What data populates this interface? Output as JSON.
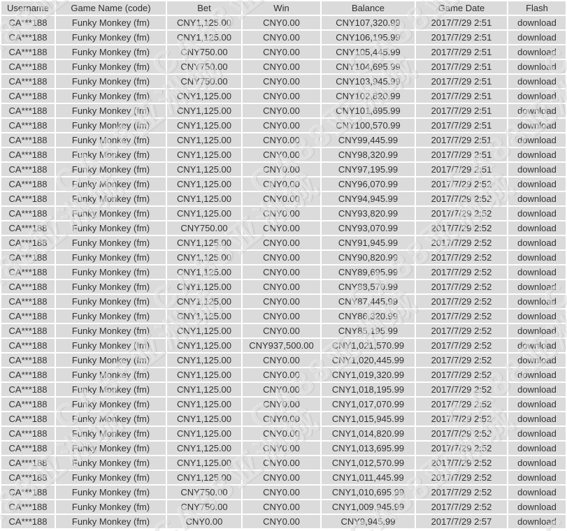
{
  "table": {
    "columns": [
      "Username",
      "Game Name (code)",
      "Bet",
      "Win",
      "Balance",
      "Game Date",
      "Flash"
    ],
    "rows": [
      [
        "CA***188",
        "Funky Monkey (fm)",
        "CNY1,125.00",
        "CNY0.00",
        "CNY107,320.99",
        "2017/7/29 2:51",
        "download"
      ],
      [
        "CA***188",
        "Funky Monkey (fm)",
        "CNY1,125.00",
        "CNY0.00",
        "CNY106,195.99",
        "2017/7/29 2:51",
        "download"
      ],
      [
        "CA***188",
        "Funky Monkey (fm)",
        "CNY750.00",
        "CNY0.00",
        "CNY105,445.99",
        "2017/7/29 2:51",
        "download"
      ],
      [
        "CA***188",
        "Funky Monkey (fm)",
        "CNY750.00",
        "CNY0.00",
        "CNY104,695.99",
        "2017/7/29 2:51",
        "download"
      ],
      [
        "CA***188",
        "Funky Monkey (fm)",
        "CNY750.00",
        "CNY0.00",
        "CNY103,945.99",
        "2017/7/29 2:51",
        "download"
      ],
      [
        "CA***188",
        "Funky Monkey (fm)",
        "CNY1,125.00",
        "CNY0.00",
        "CNY102,820.99",
        "2017/7/29 2:51",
        "download"
      ],
      [
        "CA***188",
        "Funky Monkey (fm)",
        "CNY1,125.00",
        "CNY0.00",
        "CNY101,695.99",
        "2017/7/29 2:51",
        "download"
      ],
      [
        "CA***188",
        "Funky Monkey (fm)",
        "CNY1,125.00",
        "CNY0.00",
        "CNY100,570.99",
        "2017/7/29 2:51",
        "download"
      ],
      [
        "CA***188",
        "Funky Monkey (fm)",
        "CNY1,125.00",
        "CNY0.00",
        "CNY99,445.99",
        "2017/7/29 2:51",
        "download"
      ],
      [
        "CA***188",
        "Funky Monkey (fm)",
        "CNY1,125.00",
        "CNY0.00",
        "CNY98,320.99",
        "2017/7/29 2:51",
        "download"
      ],
      [
        "CA***188",
        "Funky Monkey (fm)",
        "CNY1,125.00",
        "CNY0.00",
        "CNY97,195.99",
        "2017/7/29 2:51",
        "download"
      ],
      [
        "CA***188",
        "Funky Monkey (fm)",
        "CNY1,125.00",
        "CNY0.00",
        "CNY96,070.99",
        "2017/7/29 2:52",
        "download"
      ],
      [
        "CA***188",
        "Funky Monkey (fm)",
        "CNY1,125.00",
        "CNY0.00",
        "CNY94,945.99",
        "2017/7/29 2:52",
        "download"
      ],
      [
        "CA***188",
        "Funky Monkey (fm)",
        "CNY1,125.00",
        "CNY0.00",
        "CNY93,820.99",
        "2017/7/29 2:52",
        "download"
      ],
      [
        "CA***188",
        "Funky Monkey (fm)",
        "CNY750.00",
        "CNY0.00",
        "CNY93,070.99",
        "2017/7/29 2:52",
        "download"
      ],
      [
        "CA***188",
        "Funky Monkey (fm)",
        "CNY1,125.00",
        "CNY0.00",
        "CNY91,945.99",
        "2017/7/29 2:52",
        "download"
      ],
      [
        "CA***188",
        "Funky Monkey (fm)",
        "CNY1,125.00",
        "CNY0.00",
        "CNY90,820.99",
        "2017/7/29 2:52",
        "download"
      ],
      [
        "CA***188",
        "Funky Monkey (fm)",
        "CNY1,125.00",
        "CNY0.00",
        "CNY89,695.99",
        "2017/7/29 2:52",
        "download"
      ],
      [
        "CA***188",
        "Funky Monkey (fm)",
        "CNY1,125.00",
        "CNY0.00",
        "CNY88,570.99",
        "2017/7/29 2:52",
        "download"
      ],
      [
        "CA***188",
        "Funky Monkey (fm)",
        "CNY1,125.00",
        "CNY0.00",
        "CNY87,445.99",
        "2017/7/29 2:52",
        "download"
      ],
      [
        "CA***188",
        "Funky Monkey (fm)",
        "CNY1,125.00",
        "CNY0.00",
        "CNY86,320.99",
        "2017/7/29 2:52",
        "download"
      ],
      [
        "CA***188",
        "Funky Monkey (fm)",
        "CNY1,125.00",
        "CNY0.00",
        "CNY85,195.99",
        "2017/7/29 2:52",
        "download"
      ],
      [
        "CA***188",
        "Funky Monkey (fm)",
        "CNY1,125.00",
        "CNY937,500.00",
        "CNY1,021,570.99",
        "2017/7/29 2:52",
        "download"
      ],
      [
        "CA***188",
        "Funky Monkey (fm)",
        "CNY1,125.00",
        "CNY0.00",
        "CNY1,020,445.99",
        "2017/7/29 2:52",
        "download"
      ],
      [
        "CA***188",
        "Funky Monkey (fm)",
        "CNY1,125.00",
        "CNY0.00",
        "CNY1,019,320.99",
        "2017/7/29 2:52",
        "download"
      ],
      [
        "CA***188",
        "Funky Monkey (fm)",
        "CNY1,125.00",
        "CNY0.00",
        "CNY1,018,195.99",
        "2017/7/29 2:52",
        "download"
      ],
      [
        "CA***188",
        "Funky Monkey (fm)",
        "CNY1,125.00",
        "CNY0.00",
        "CNY1,017,070.99",
        "2017/7/29 2:52",
        "download"
      ],
      [
        "CA***188",
        "Funky Monkey (fm)",
        "CNY1,125.00",
        "CNY0.00",
        "CNY1,015,945.99",
        "2017/7/29 2:52",
        "download"
      ],
      [
        "CA***188",
        "Funky Monkey (fm)",
        "CNY1,125.00",
        "CNY0.00",
        "CNY1,014,820.99",
        "2017/7/29 2:52",
        "download"
      ],
      [
        "CA***188",
        "Funky Monkey (fm)",
        "CNY1,125.00",
        "CNY0.00",
        "CNY1,013,695.99",
        "2017/7/29 2:52",
        "download"
      ],
      [
        "CA***188",
        "Funky Monkey (fm)",
        "CNY1,125.00",
        "CNY0.00",
        "CNY1,012,570.99",
        "2017/7/29 2:52",
        "download"
      ],
      [
        "CA***188",
        "Funky Monkey (fm)",
        "CNY1,125.00",
        "CNY0.00",
        "CNY1,011,445.99",
        "2017/7/29 2:52",
        "download"
      ],
      [
        "CA***188",
        "Funky Monkey (fm)",
        "CNY750.00",
        "CNY0.00",
        "CNY1,010,695.99",
        "2017/7/29 2:52",
        "download"
      ],
      [
        "CA***188",
        "Funky Monkey (fm)",
        "CNY750.00",
        "CNY0.00",
        "CNY1,009,945.99",
        "2017/7/29 2:52",
        "download"
      ],
      [
        "CA***188",
        "Funky Monkey (fm)",
        "CNY0.00",
        "CNY0.00",
        "CNY9,945.99",
        "2017/7/29 2:57",
        "download"
      ]
    ]
  },
  "watermark": {
    "text": "CA88亚洲城"
  },
  "colors": {
    "row_bg": "#dbdbdb",
    "text": "#333333",
    "separator": "#ffffff",
    "watermark": "rgba(255,255,255,0.42)"
  }
}
